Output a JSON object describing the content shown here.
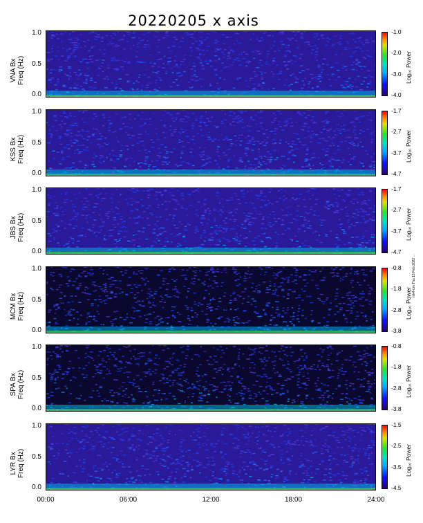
{
  "title": "20220205 x axis",
  "side_note": "mk4-cm Thu 15 Feb 2022 ...",
  "colorbar_label": "Log₁₀ Power",
  "x_ticks": [
    "00:00",
    "06:00",
    "12:00",
    "18:00",
    "24:00"
  ],
  "y_ticks": [
    "1.0",
    "0.5",
    "0.0"
  ],
  "chart_data": [
    {
      "type": "heatmap",
      "station": "VNA Bx",
      "ylabel": "Freq (Hz)",
      "ylim": [
        0,
        1
      ],
      "xlim": [
        "00:00",
        "24:00"
      ],
      "colorbar": {
        "ticks": [
          "-1.0",
          "-2.0",
          "-3.0",
          "-4.0"
        ],
        "range": [
          -4.0,
          -1.0
        ],
        "label": "Log₁₀ Power"
      }
    },
    {
      "type": "heatmap",
      "station": "KSS Bx",
      "ylabel": "Freq (Hz)",
      "ylim": [
        0,
        1
      ],
      "xlim": [
        "00:00",
        "24:00"
      ],
      "colorbar": {
        "ticks": [
          "-1.7",
          "-2.7",
          "-3.7",
          "-4.7"
        ],
        "range": [
          -4.7,
          -1.7
        ],
        "label": "Log₁₀ Power"
      }
    },
    {
      "type": "heatmap",
      "station": "JBS Bx",
      "ylabel": "Freq (Hz)",
      "ylim": [
        0,
        1
      ],
      "xlim": [
        "00:00",
        "24:00"
      ],
      "colorbar": {
        "ticks": [
          "-1.7",
          "-2.7",
          "-3.7",
          "-4.7"
        ],
        "range": [
          -4.7,
          -1.7
        ],
        "label": "Log₁₀ Power"
      }
    },
    {
      "type": "heatmap",
      "station": "MCM Bx",
      "ylabel": "Freq (Hz)",
      "ylim": [
        0,
        1
      ],
      "xlim": [
        "00:00",
        "24:00"
      ],
      "colorbar": {
        "ticks": [
          "-0.8",
          "-1.8",
          "-2.8",
          "-3.8"
        ],
        "range": [
          -3.8,
          -0.8
        ],
        "label": "Log₁₀ Power"
      }
    },
    {
      "type": "heatmap",
      "station": "SPA Bx",
      "ylabel": "Freq (Hz)",
      "ylim": [
        0,
        1
      ],
      "xlim": [
        "00:00",
        "24:00"
      ],
      "colorbar": {
        "ticks": [
          "-0.8",
          "-1.8",
          "-2.8",
          "-3.8"
        ],
        "range": [
          -3.8,
          -0.8
        ],
        "label": "Log₁₀ Power"
      }
    },
    {
      "type": "heatmap",
      "station": "LYR Bx",
      "ylabel": "Freq (Hz)",
      "ylim": [
        0,
        1
      ],
      "xlim": [
        "00:00",
        "24:00"
      ],
      "colorbar": {
        "ticks": [
          "-1.5",
          "-2.5",
          "-3.5",
          "-4.5"
        ],
        "range": [
          -4.5,
          -1.5
        ],
        "label": "Log₁₀ Power"
      }
    }
  ]
}
